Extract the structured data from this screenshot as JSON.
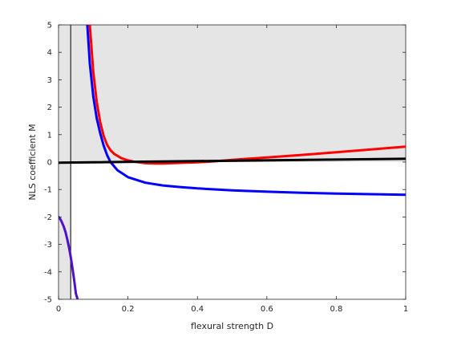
{
  "chart_data": {
    "type": "line",
    "title": "",
    "xlabel": "flexural strength D",
    "ylabel": "NLS coefficient M",
    "xlim": [
      0,
      1
    ],
    "ylim": [
      -5,
      5
    ],
    "x_ticks": [
      0,
      0.2,
      0.4,
      0.6,
      0.8,
      1
    ],
    "y_ticks": [
      -5,
      -4,
      -3,
      -2,
      -1,
      0,
      1,
      2,
      3,
      4,
      5
    ],
    "x_tick_labels": [
      "0",
      "0.2",
      "0.4",
      "0.6",
      "0.8",
      "1"
    ],
    "y_tick_labels": [
      "-5",
      "-4",
      "-3",
      "-2",
      "-1",
      "0",
      "1",
      "2",
      "3",
      "4",
      "5"
    ],
    "grid": false,
    "legend": "none",
    "shaded_regions": [
      {
        "x": [
          0,
          0.035
        ],
        "y": [
          -5,
          5
        ],
        "color": "#e5e5e5"
      },
      {
        "x": [
          0.035,
          1
        ],
        "y": [
          0,
          5
        ],
        "color": "#e5e5e5"
      }
    ],
    "vertical_lines": [
      {
        "x": 0.035,
        "color": "#000000"
      }
    ],
    "series": [
      {
        "color": "#ff0000",
        "x": [
          0.09,
          0.1,
          0.11,
          0.12,
          0.13,
          0.14,
          0.15,
          0.16,
          0.18,
          0.2,
          0.22,
          0.25,
          0.28,
          0.3,
          0.35,
          0.4,
          0.45,
          0.5,
          0.6,
          0.7,
          0.8,
          0.9,
          1.0
        ],
        "y": [
          5.0,
          3.3,
          2.2,
          1.45,
          0.95,
          0.63,
          0.43,
          0.3,
          0.15,
          0.06,
          0.01,
          -0.04,
          -0.05,
          -0.05,
          -0.03,
          -0.01,
          0.03,
          0.08,
          0.17,
          0.26,
          0.36,
          0.46,
          0.56
        ]
      },
      {
        "color": "#0000ff",
        "x": [
          0.083,
          0.09,
          0.1,
          0.11,
          0.12,
          0.13,
          0.14,
          0.15,
          0.17,
          0.2,
          0.25,
          0.3,
          0.35,
          0.4,
          0.5,
          0.6,
          0.7,
          0.8,
          0.9,
          1.0
        ],
        "y": [
          5.0,
          3.6,
          2.4,
          1.6,
          1.05,
          0.6,
          0.25,
          0.0,
          -0.3,
          -0.55,
          -0.75,
          -0.85,
          -0.91,
          -0.96,
          -1.03,
          -1.08,
          -1.12,
          -1.15,
          -1.17,
          -1.19
        ]
      },
      {
        "color": "#5010c8",
        "x": [
          0.0,
          0.005,
          0.01,
          0.015,
          0.02,
          0.025,
          0.03,
          0.035,
          0.04,
          0.045,
          0.05,
          0.055
        ],
        "y": [
          -2.0,
          -2.08,
          -2.2,
          -2.35,
          -2.55,
          -2.8,
          -3.1,
          -3.45,
          -3.85,
          -4.3,
          -4.8,
          -5.0
        ]
      },
      {
        "color": "#000000",
        "x": [
          0.0,
          1.0
        ],
        "y": [
          -0.02,
          0.12
        ]
      }
    ]
  }
}
